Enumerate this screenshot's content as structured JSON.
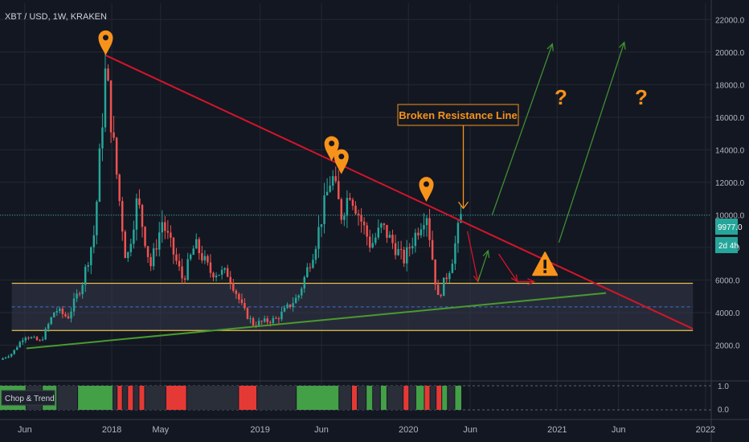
{
  "header": {
    "symbol_line": "XBT / USD, 1W, KRAKEN"
  },
  "price_tag": {
    "value": "9977.0",
    "countdown": "2d 4h"
  },
  "indicator": {
    "name": "Chop & Trend",
    "y_ticks": [
      "1.0",
      "0.0"
    ]
  },
  "annotation": {
    "callout": "Broken Resistance Line",
    "question_mark": "?"
  },
  "colors": {
    "background": "#131722",
    "candle_up": "#26a69a",
    "candle_down": "#ef5350",
    "resistance_line": "#d3152a",
    "support_line": "#4a9a2f",
    "range_box_border": "#e6c24c",
    "marker": "#f7931a",
    "price_line": "#26a69a",
    "projection_green": "#3f8f2f",
    "projection_red": "#d3152a"
  },
  "chart_data": {
    "type": "candlestick",
    "title": "XBT / USD, 1W, KRAKEN",
    "y_axis": {
      "min": 0,
      "max": 23000,
      "ticks": [
        2000,
        4000,
        6000,
        8000,
        10000,
        12000,
        14000,
        16000,
        18000,
        20000,
        22000
      ]
    },
    "x_axis": {
      "min": "2017-04-01",
      "max": "2022-01-15",
      "tick_labels": [
        {
          "label": "Jun",
          "date": "2017-06-01"
        },
        {
          "label": "2018",
          "date": "2018-01-01"
        },
        {
          "label": "May",
          "date": "2018-05-01"
        },
        {
          "label": "2019",
          "date": "2019-01-01"
        },
        {
          "label": "Jun",
          "date": "2019-06-01"
        },
        {
          "label": "2020",
          "date": "2020-01-01"
        },
        {
          "label": "Jun",
          "date": "2020-06-01"
        },
        {
          "label": "2021",
          "date": "2021-01-01"
        },
        {
          "label": "Jun",
          "date": "2021-06-01"
        },
        {
          "label": "2022",
          "date": "2022-01-01"
        }
      ]
    },
    "grid": true,
    "last_price": 9977.0,
    "price_anchors": [
      [
        "2017-04-01",
        1100
      ],
      [
        "2017-05-01",
        1500
      ],
      [
        "2017-06-01",
        2600
      ],
      [
        "2017-07-10",
        2200
      ],
      [
        "2017-08-15",
        4200
      ],
      [
        "2017-09-15",
        3700
      ],
      [
        "2017-10-20",
        5800
      ],
      [
        "2017-11-20",
        9000
      ],
      [
        "2017-12-17",
        19000
      ],
      [
        "2018-01-15",
        12000
      ],
      [
        "2018-02-06",
        7000
      ],
      [
        "2018-03-05",
        11000
      ],
      [
        "2018-04-06",
        6800
      ],
      [
        "2018-05-05",
        9600
      ],
      [
        "2018-06-25",
        6000
      ],
      [
        "2018-07-25",
        8200
      ],
      [
        "2018-09-01",
        6500
      ],
      [
        "2018-10-15",
        6400
      ],
      [
        "2018-11-20",
        4200
      ],
      [
        "2018-12-15",
        3300
      ],
      [
        "2019-02-10",
        3600
      ],
      [
        "2019-04-05",
        5000
      ],
      [
        "2019-05-15",
        8000
      ],
      [
        "2019-06-26",
        12500
      ],
      [
        "2019-07-20",
        10000
      ],
      [
        "2019-08-10",
        11500
      ],
      [
        "2019-09-30",
        8100
      ],
      [
        "2019-10-28",
        9300
      ],
      [
        "2019-12-20",
        7200
      ],
      [
        "2020-02-14",
        10300
      ],
      [
        "2020-03-13",
        4800
      ],
      [
        "2020-04-15",
        7000
      ],
      [
        "2020-05-10",
        9977
      ]
    ],
    "series": [
      {
        "kind": "trendline",
        "points": [
          [
            "2017-12-17",
            19800
          ],
          [
            "2021-12-01",
            3000
          ]
        ]
      },
      {
        "kind": "trendline",
        "points": [
          [
            "2017-06-05",
            1800
          ],
          [
            "2021-05-01",
            5200
          ]
        ]
      },
      {
        "kind": "range_box",
        "x": [
          "2017-04-30",
          "2021-12-01"
        ],
        "y": [
          2900,
          5800
        ],
        "midline": 4350
      }
    ],
    "markers": [
      {
        "date": "2017-12-17",
        "price": 19800
      },
      {
        "date": "2019-06-26",
        "price": 13300
      },
      {
        "date": "2019-07-20",
        "price": 12500
      },
      {
        "date": "2020-02-14",
        "price": 10800
      }
    ],
    "projections": [
      {
        "color": "green",
        "points": [
          [
            "2020-07-25",
            10000
          ],
          [
            "2020-12-20",
            20500
          ]
        ]
      },
      {
        "color": "green",
        "points": [
          [
            "2021-01-05",
            8300
          ],
          [
            "2021-06-15",
            20600
          ]
        ]
      },
      {
        "color": "red",
        "points": [
          [
            "2020-05-25",
            9000
          ],
          [
            "2020-06-20",
            5900
          ]
        ]
      },
      {
        "color": "green",
        "points": [
          [
            "2020-06-20",
            5900
          ],
          [
            "2020-07-15",
            7800
          ]
        ]
      },
      {
        "color": "red",
        "points": [
          [
            "2020-08-10",
            7600
          ],
          [
            "2020-09-25",
            5900
          ]
        ]
      },
      {
        "color": "red",
        "points": [
          [
            "2020-09-25",
            5900
          ],
          [
            "2020-11-05",
            5900
          ]
        ]
      }
    ],
    "warning": {
      "date": "2020-12-02",
      "price": 6900
    },
    "callout_arrow": {
      "date": "2020-05-15",
      "from_price": 15800,
      "to_price": 10400
    }
  }
}
